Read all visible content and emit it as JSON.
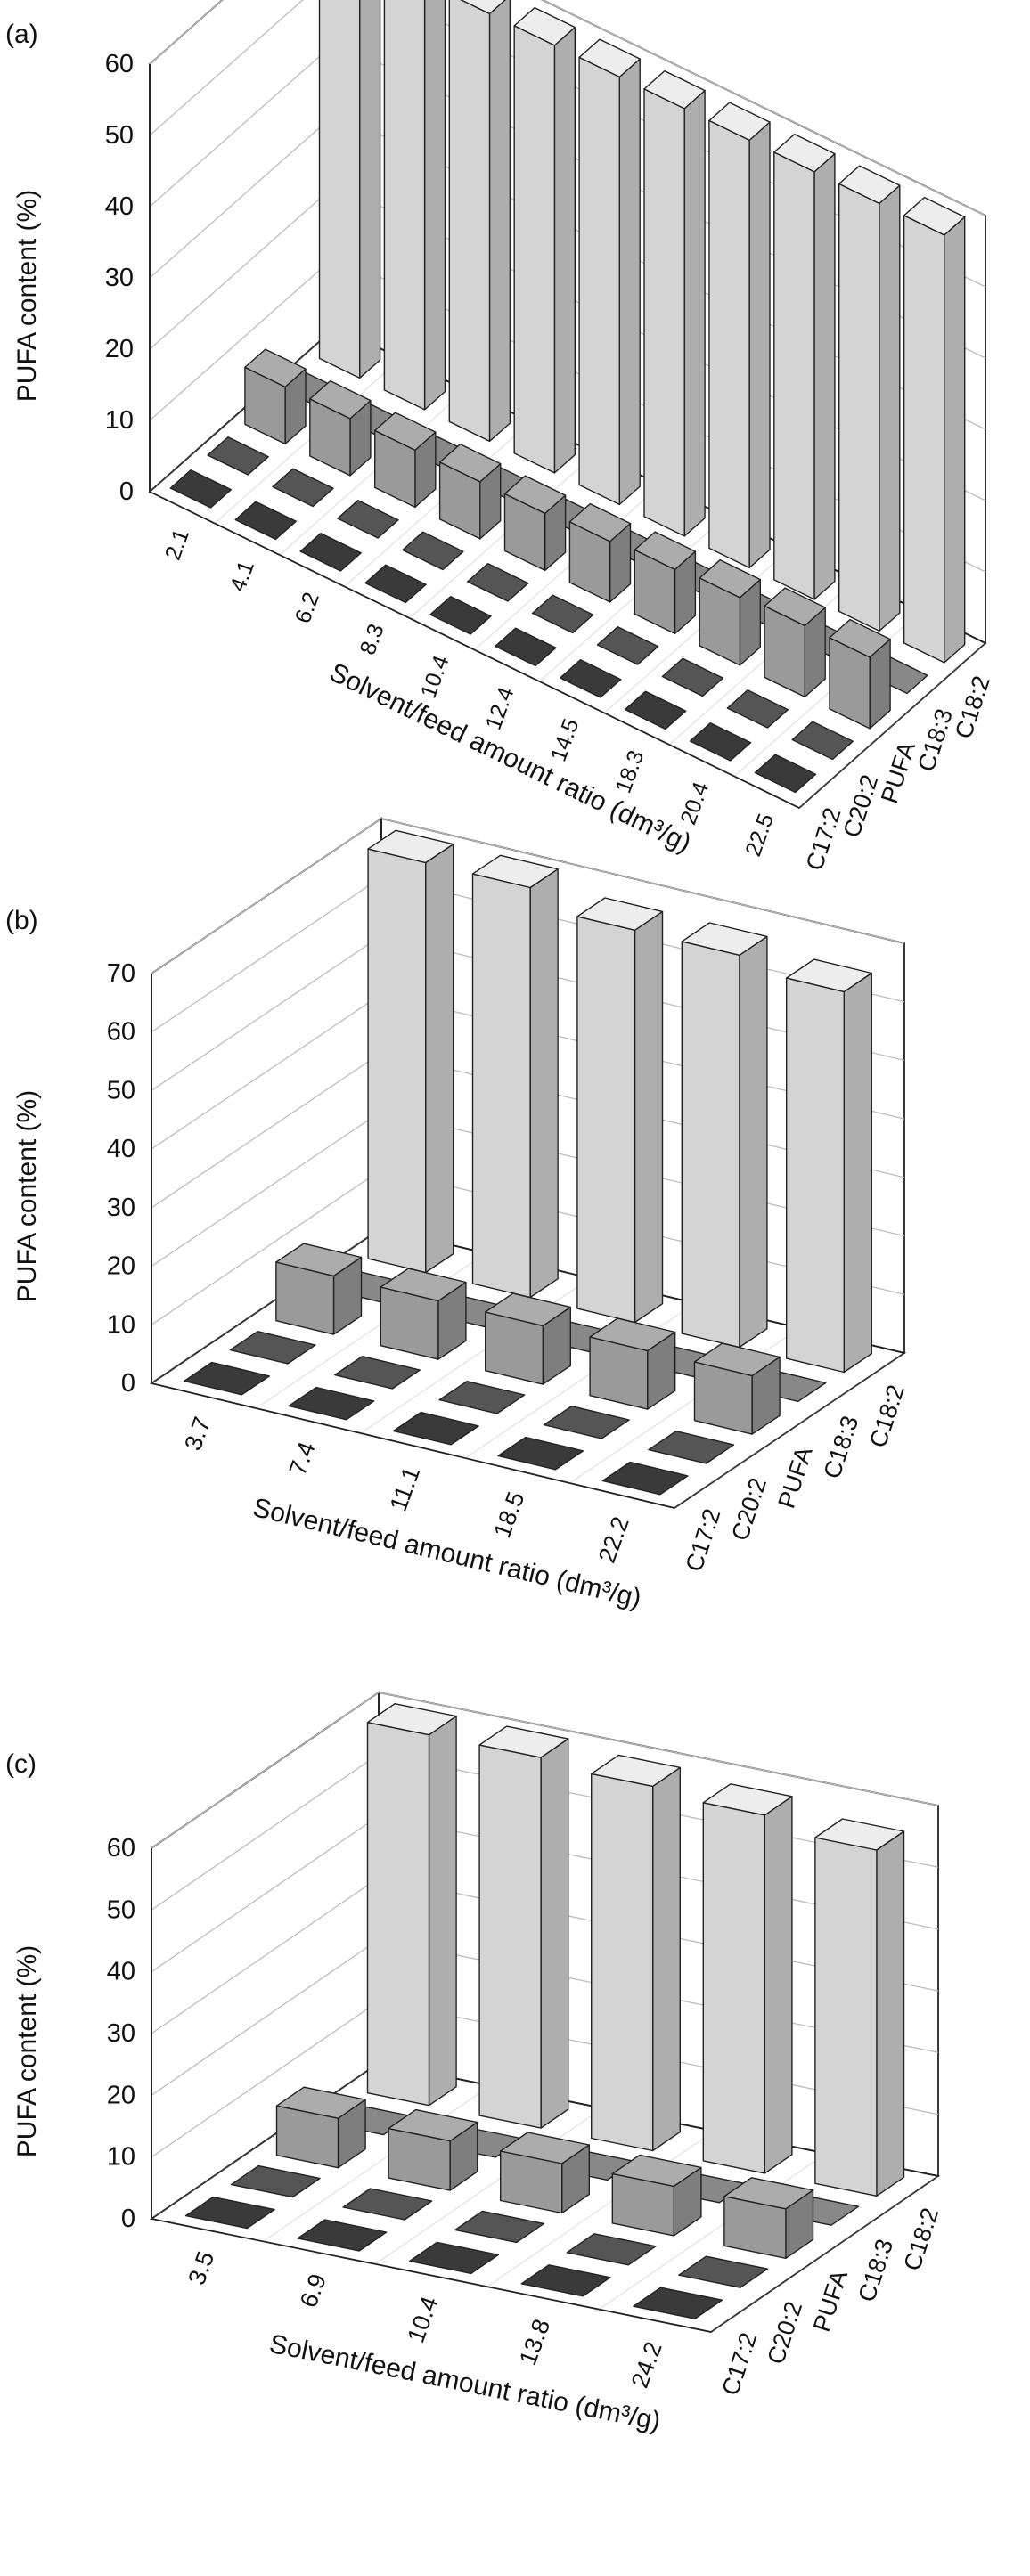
{
  "chart_data": [
    {
      "panel_label": "(a)",
      "type": "bar3d",
      "ylabel": "PUFA content (%)",
      "xlabel": "Solvent/feed amount ratio (dm³/g)",
      "ylim": [
        0,
        60
      ],
      "y_ticks": [
        "0",
        "10",
        "20",
        "30",
        "40",
        "50",
        "60"
      ],
      "categories": [
        "2.1",
        "4.1",
        "6.2",
        "8.3",
        "10.4",
        "12.4",
        "14.5",
        "18.3",
        "20.4",
        "22.5"
      ],
      "series": [
        {
          "name": "C17:2",
          "values": [
            0.3,
            0.3,
            0.3,
            0.3,
            0.3,
            0.3,
            0.3,
            0.3,
            0.3,
            0.3
          ],
          "color": "#3a3a3a"
        },
        {
          "name": "C20:2",
          "values": [
            0.3,
            0.3,
            0.3,
            0.3,
            0.3,
            0.3,
            0.3,
            0.3,
            0.3,
            0.3
          ],
          "color": "#555555"
        },
        {
          "name": "PUFA",
          "values": [
            8,
            8,
            8,
            8,
            8,
            8.5,
            9,
            9.5,
            10,
            10
          ],
          "color": "#9a9a9a"
        },
        {
          "name": "C18:3",
          "values": [
            0.3,
            0.3,
            0.3,
            0.3,
            0.3,
            0.3,
            0.3,
            0.3,
            0.3,
            0.3
          ],
          "color": "#888888"
        },
        {
          "name": "C18:2",
          "values": [
            60,
            60,
            60,
            60,
            60,
            60,
            60,
            60,
            60,
            60
          ],
          "color": "#d4d4d4"
        }
      ]
    },
    {
      "panel_label": "(b)",
      "type": "bar3d",
      "ylabel": "PUFA content (%)",
      "xlabel": "Solvent/feed amount ratio (dm³/g)",
      "ylim": [
        0,
        70
      ],
      "y_ticks": [
        "0",
        "10",
        "20",
        "30",
        "40",
        "50",
        "60",
        "70"
      ],
      "categories": [
        "3.7",
        "7.4",
        "11.1",
        "18.5",
        "22.2"
      ],
      "series": [
        {
          "name": "C17:2",
          "values": [
            0.3,
            0.3,
            0.3,
            0.3,
            0.3
          ],
          "color": "#3a3a3a"
        },
        {
          "name": "C20:2",
          "values": [
            0.3,
            0.3,
            0.3,
            0.3,
            0.3
          ],
          "color": "#555555"
        },
        {
          "name": "PUFA",
          "values": [
            10,
            10,
            10,
            10,
            10
          ],
          "color": "#9a9a9a"
        },
        {
          "name": "C18:3",
          "values": [
            0.3,
            0.3,
            0.3,
            0.3,
            0.3
          ],
          "color": "#888888"
        },
        {
          "name": "C18:2",
          "values": [
            70,
            70,
            67,
            67,
            65
          ],
          "color": "#d4d4d4"
        }
      ]
    },
    {
      "panel_label": "(c)",
      "type": "bar3d",
      "ylabel": "PUFA content (%)",
      "xlabel": "Solvent/feed amount ratio (dm³/g)",
      "ylim": [
        0,
        60
      ],
      "y_ticks": [
        "0",
        "10",
        "20",
        "30",
        "40",
        "50",
        "60"
      ],
      "categories": [
        "3.5",
        "6.9",
        "10.4",
        "13.8",
        "24.2"
      ],
      "series": [
        {
          "name": "C17:2",
          "values": [
            0.3,
            0.3,
            0.3,
            0.3,
            0.3
          ],
          "color": "#3a3a3a"
        },
        {
          "name": "C20:2",
          "values": [
            0.3,
            0.3,
            0.3,
            0.3,
            0.3
          ],
          "color": "#555555"
        },
        {
          "name": "PUFA",
          "values": [
            8,
            8,
            8,
            8,
            8
          ],
          "color": "#9a9a9a"
        },
        {
          "name": "C18:3",
          "values": [
            0.3,
            0.3,
            0.3,
            0.3,
            0.3
          ],
          "color": "#888888"
        },
        {
          "name": "C18:2",
          "values": [
            60,
            60,
            59,
            58,
            56
          ],
          "color": "#d4d4d4"
        }
      ]
    }
  ]
}
